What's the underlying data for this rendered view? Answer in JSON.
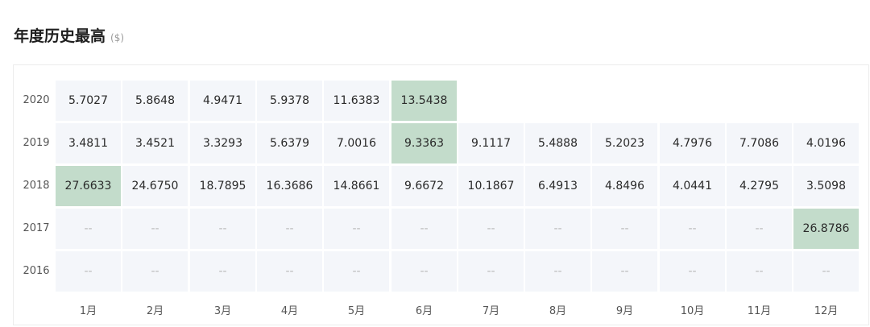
{
  "header": {
    "title": "年度历史最高",
    "unit": "($)"
  },
  "colors": {
    "cell_bg": "#f4f6fa",
    "highlight": "#c3dccb"
  },
  "chart_data": {
    "type": "table",
    "title": "年度历史最高",
    "unit": "($)",
    "columns": [
      "1月",
      "2月",
      "3月",
      "4月",
      "5月",
      "6月",
      "7月",
      "8月",
      "9月",
      "10月",
      "11月",
      "12月"
    ],
    "empty_symbol": "--",
    "rows": [
      {
        "year": "2020",
        "values": [
          "5.7027",
          "5.8648",
          "4.9471",
          "5.9378",
          "11.6383",
          "13.5438",
          null,
          null,
          null,
          null,
          null,
          null
        ],
        "highlight": 5
      },
      {
        "year": "2019",
        "values": [
          "3.4811",
          "3.4521",
          "3.3293",
          "5.6379",
          "7.0016",
          "9.3363",
          "9.1117",
          "5.4888",
          "5.2023",
          "4.7976",
          "7.7086",
          "4.0196"
        ],
        "highlight": 5
      },
      {
        "year": "2018",
        "values": [
          "27.6633",
          "24.6750",
          "18.7895",
          "16.3686",
          "14.8661",
          "9.6672",
          "10.1867",
          "6.4913",
          "4.8496",
          "4.0441",
          "4.2795",
          "3.5098"
        ],
        "highlight": 0
      },
      {
        "year": "2017",
        "values": [
          "--",
          "--",
          "--",
          "--",
          "--",
          "--",
          "--",
          "--",
          "--",
          "--",
          "--",
          "26.8786"
        ],
        "highlight": 11
      },
      {
        "year": "2016",
        "values": [
          "--",
          "--",
          "--",
          "--",
          "--",
          "--",
          "--",
          "--",
          "--",
          "--",
          "--",
          "--"
        ],
        "highlight": null
      }
    ]
  }
}
